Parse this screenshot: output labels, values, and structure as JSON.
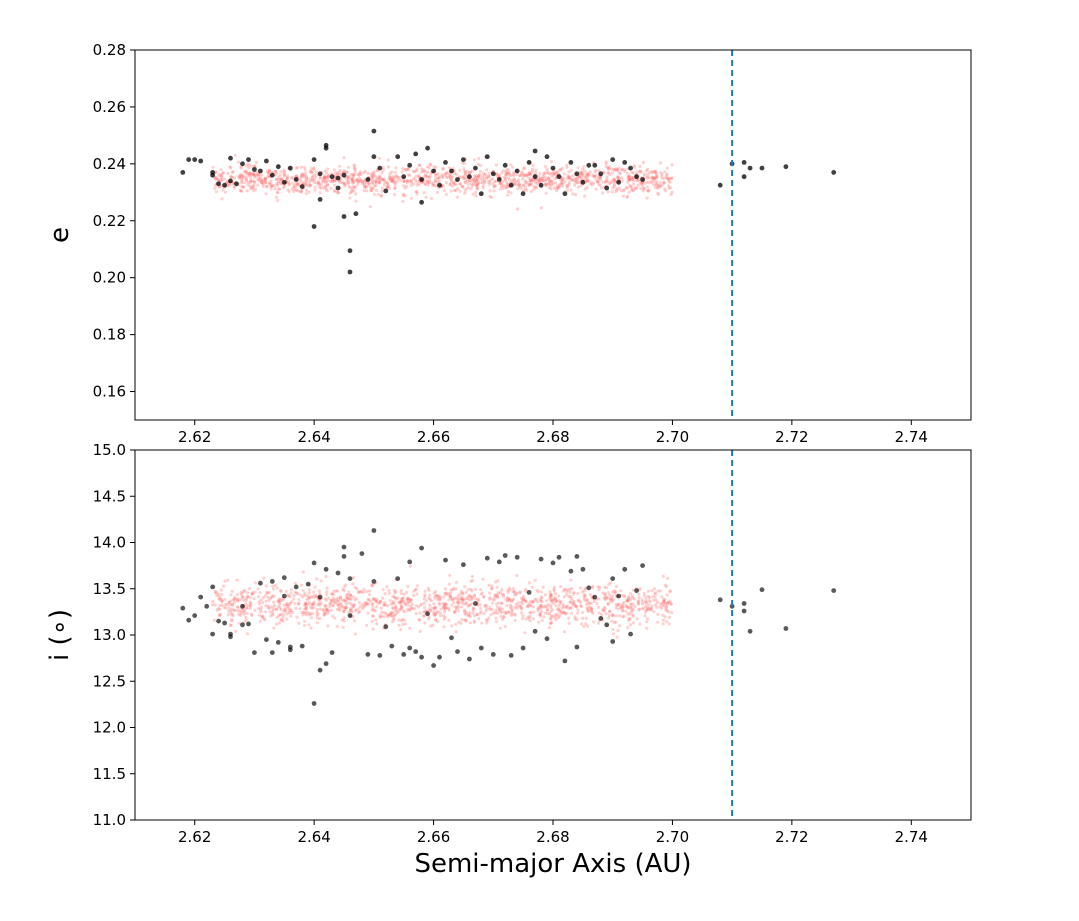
{
  "chart_data": [
    {
      "type": "scatter",
      "panel": "top",
      "xlabel": "",
      "ylabel": "e",
      "xlim": [
        2.61,
        2.75
      ],
      "ylim": [
        0.15,
        0.28
      ],
      "xticks": [
        "2.62",
        "2.64",
        "2.66",
        "2.68",
        "2.70",
        "2.72",
        "2.74"
      ],
      "yticks": [
        "0.16",
        "0.18",
        "0.20",
        "0.22",
        "0.24",
        "0.26",
        "0.28"
      ],
      "grid": false,
      "vline": {
        "x": 2.71,
        "style": "dashed",
        "color": "#1f77b4"
      },
      "series": [
        {
          "color": "#ff6b6b",
          "opacity": 0.3,
          "description_cloud": {
            "x_range": [
              2.623,
              2.7
            ],
            "y_center": 0.2345,
            "y_spread": 0.0045,
            "count": 1400
          }
        },
        {
          "color": "#000000",
          "opacity": 0.75,
          "points": [
            [
              2.618,
              0.237
            ],
            [
              2.619,
              0.2415
            ],
            [
              2.62,
              0.2415
            ],
            [
              2.621,
              0.241
            ],
            [
              2.623,
              0.237
            ],
            [
              2.623,
              0.236
            ],
            [
              2.624,
              0.233
            ],
            [
              2.625,
              0.2325
            ],
            [
              2.626,
              0.234
            ],
            [
              2.626,
              0.242
            ],
            [
              2.627,
              0.233
            ],
            [
              2.628,
              0.24
            ],
            [
              2.629,
              0.2415
            ],
            [
              2.63,
              0.238
            ],
            [
              2.631,
              0.2375
            ],
            [
              2.632,
              0.241
            ],
            [
              2.633,
              0.236
            ],
            [
              2.634,
              0.239
            ],
            [
              2.635,
              0.2335
            ],
            [
              2.636,
              0.2385
            ],
            [
              2.637,
              0.2345
            ],
            [
              2.638,
              0.232
            ],
            [
              2.64,
              0.218
            ],
            [
              2.64,
              0.2415
            ],
            [
              2.641,
              0.2365
            ],
            [
              2.641,
              0.2275
            ],
            [
              2.642,
              0.2465
            ],
            [
              2.642,
              0.2455
            ],
            [
              2.643,
              0.2355
            ],
            [
              2.644,
              0.235
            ],
            [
              2.644,
              0.2315
            ],
            [
              2.645,
              0.236
            ],
            [
              2.645,
              0.2215
            ],
            [
              2.646,
              0.2095
            ],
            [
              2.646,
              0.202
            ],
            [
              2.647,
              0.2225
            ],
            [
              2.649,
              0.2345
            ],
            [
              2.65,
              0.2515
            ],
            [
              2.65,
              0.2425
            ],
            [
              2.651,
              0.2385
            ],
            [
              2.652,
              0.2305
            ],
            [
              2.654,
              0.2425
            ],
            [
              2.655,
              0.2355
            ],
            [
              2.656,
              0.2395
            ],
            [
              2.657,
              0.2435
            ],
            [
              2.658,
              0.2345
            ],
            [
              2.658,
              0.2265
            ],
            [
              2.659,
              0.2455
            ],
            [
              2.66,
              0.2375
            ],
            [
              2.661,
              0.2325
            ],
            [
              2.662,
              0.2405
            ],
            [
              2.663,
              0.2375
            ],
            [
              2.664,
              0.2345
            ],
            [
              2.665,
              0.2415
            ],
            [
              2.666,
              0.2355
            ],
            [
              2.667,
              0.2385
            ],
            [
              2.668,
              0.2295
            ],
            [
              2.669,
              0.2425
            ],
            [
              2.67,
              0.2365
            ],
            [
              2.671,
              0.2345
            ],
            [
              2.672,
              0.2395
            ],
            [
              2.673,
              0.2325
            ],
            [
              2.674,
              0.2375
            ],
            [
              2.675,
              0.2295
            ],
            [
              2.676,
              0.2405
            ],
            [
              2.677,
              0.2445
            ],
            [
              2.677,
              0.2355
            ],
            [
              2.678,
              0.2325
            ],
            [
              2.679,
              0.2425
            ],
            [
              2.68,
              0.2385
            ],
            [
              2.681,
              0.2355
            ],
            [
              2.682,
              0.2295
            ],
            [
              2.683,
              0.2405
            ],
            [
              2.684,
              0.2365
            ],
            [
              2.685,
              0.2335
            ],
            [
              2.686,
              0.2395
            ],
            [
              2.687,
              0.2395
            ],
            [
              2.688,
              0.2365
            ],
            [
              2.689,
              0.2315
            ],
            [
              2.69,
              0.2415
            ],
            [
              2.691,
              0.2335
            ],
            [
              2.692,
              0.2405
            ],
            [
              2.693,
              0.2385
            ],
            [
              2.694,
              0.2355
            ],
            [
              2.695,
              0.2345
            ],
            [
              2.708,
              0.2325
            ],
            [
              2.71,
              0.24
            ],
            [
              2.712,
              0.2405
            ],
            [
              2.712,
              0.2355
            ],
            [
              2.713,
              0.2385
            ],
            [
              2.715,
              0.2385
            ],
            [
              2.719,
              0.239
            ],
            [
              2.727,
              0.237
            ]
          ]
        }
      ]
    },
    {
      "type": "scatter",
      "panel": "bottom",
      "xlabel": "Semi-major Axis (AU)",
      "ylabel": "i (∘)",
      "xlim": [
        2.61,
        2.75
      ],
      "ylim": [
        11.0,
        15.0
      ],
      "xticks": [
        "2.62",
        "2.64",
        "2.66",
        "2.68",
        "2.70",
        "2.72",
        "2.74"
      ],
      "yticks": [
        "11.0",
        "11.5",
        "12.0",
        "12.5",
        "13.0",
        "13.5",
        "14.0",
        "14.5",
        "15.0"
      ],
      "grid": false,
      "vline": {
        "x": 2.71,
        "style": "dashed",
        "color": "#1f77b4"
      },
      "series": [
        {
          "color": "#ff6b6b",
          "opacity": 0.3,
          "description_cloud": {
            "x_range": [
              2.623,
              2.7
            ],
            "y_center": 13.33,
            "y_spread": 0.2,
            "count": 1400
          }
        },
        {
          "color": "#000000",
          "opacity": 0.65,
          "points": [
            [
              2.618,
              13.29
            ],
            [
              2.619,
              13.16
            ],
            [
              2.62,
              13.21
            ],
            [
              2.621,
              13.41
            ],
            [
              2.622,
              13.31
            ],
            [
              2.623,
              13.01
            ],
            [
              2.623,
              13.52
            ],
            [
              2.624,
              13.15
            ],
            [
              2.625,
              13.13
            ],
            [
              2.626,
              13.01
            ],
            [
              2.626,
              12.98
            ],
            [
              2.628,
              13.31
            ],
            [
              2.628,
              13.11
            ],
            [
              2.629,
              13.12
            ],
            [
              2.63,
              12.81
            ],
            [
              2.631,
              13.56
            ],
            [
              2.632,
              12.95
            ],
            [
              2.633,
              12.81
            ],
            [
              2.633,
              13.58
            ],
            [
              2.634,
              12.92
            ],
            [
              2.635,
              13.42
            ],
            [
              2.635,
              13.62
            ],
            [
              2.636,
              12.87
            ],
            [
              2.636,
              12.84
            ],
            [
              2.637,
              13.52
            ],
            [
              2.638,
              12.88
            ],
            [
              2.639,
              13.55
            ],
            [
              2.64,
              12.26
            ],
            [
              2.64,
              13.78
            ],
            [
              2.641,
              12.62
            ],
            [
              2.641,
              13.41
            ],
            [
              2.642,
              12.69
            ],
            [
              2.642,
              13.71
            ],
            [
              2.643,
              12.81
            ],
            [
              2.644,
              13.67
            ],
            [
              2.645,
              13.95
            ],
            [
              2.645,
              13.85
            ],
            [
              2.646,
              13.21
            ],
            [
              2.646,
              13.61
            ],
            [
              2.648,
              13.88
            ],
            [
              2.649,
              12.79
            ],
            [
              2.65,
              14.13
            ],
            [
              2.65,
              13.58
            ],
            [
              2.651,
              12.78
            ],
            [
              2.652,
              13.09
            ],
            [
              2.653,
              12.88
            ],
            [
              2.654,
              13.61
            ],
            [
              2.655,
              12.79
            ],
            [
              2.656,
              13.79
            ],
            [
              2.656,
              12.86
            ],
            [
              2.657,
              12.82
            ],
            [
              2.658,
              13.94
            ],
            [
              2.658,
              12.76
            ],
            [
              2.659,
              13.23
            ],
            [
              2.66,
              12.67
            ],
            [
              2.661,
              12.76
            ],
            [
              2.662,
              13.81
            ],
            [
              2.663,
              12.97
            ],
            [
              2.664,
              12.82
            ],
            [
              2.665,
              13.76
            ],
            [
              2.666,
              12.74
            ],
            [
              2.667,
              13.34
            ],
            [
              2.668,
              12.86
            ],
            [
              2.669,
              13.83
            ],
            [
              2.67,
              12.79
            ],
            [
              2.671,
              13.79
            ],
            [
              2.672,
              13.86
            ],
            [
              2.673,
              12.78
            ],
            [
              2.674,
              13.84
            ],
            [
              2.675,
              12.86
            ],
            [
              2.676,
              13.46
            ],
            [
              2.677,
              13.04
            ],
            [
              2.678,
              13.82
            ],
            [
              2.679,
              12.96
            ],
            [
              2.68,
              13.78
            ],
            [
              2.681,
              13.84
            ],
            [
              2.682,
              12.72
            ],
            [
              2.683,
              13.69
            ],
            [
              2.684,
              13.85
            ],
            [
              2.684,
              12.87
            ],
            [
              2.685,
              13.71
            ],
            [
              2.686,
              13.51
            ],
            [
              2.687,
              13.41
            ],
            [
              2.688,
              13.18
            ],
            [
              2.689,
              13.11
            ],
            [
              2.69,
              12.93
            ],
            [
              2.69,
              13.61
            ],
            [
              2.691,
              13.42
            ],
            [
              2.692,
              13.71
            ],
            [
              2.693,
              13.01
            ],
            [
              2.694,
              13.48
            ],
            [
              2.695,
              13.75
            ],
            [
              2.708,
              13.38
            ],
            [
              2.71,
              13.31
            ],
            [
              2.712,
              13.26
            ],
            [
              2.712,
              13.34
            ],
            [
              2.713,
              13.04
            ],
            [
              2.715,
              13.49
            ],
            [
              2.719,
              13.07
            ],
            [
              2.727,
              13.48
            ]
          ]
        }
      ]
    }
  ]
}
